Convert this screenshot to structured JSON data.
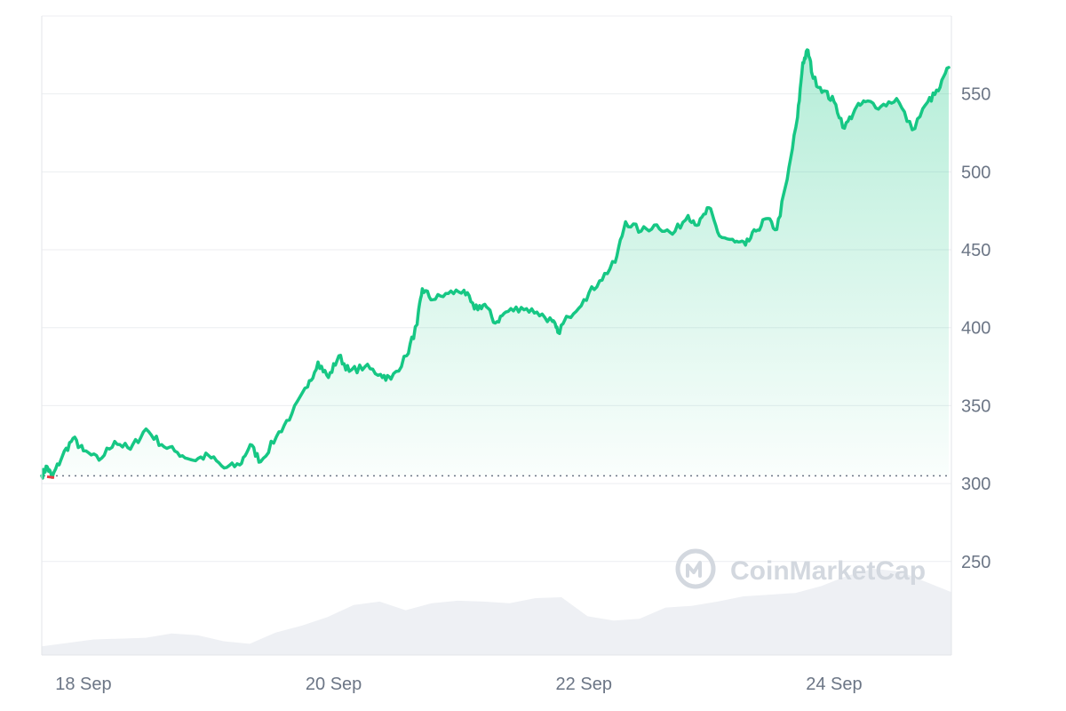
{
  "chart_data": {
    "type": "area",
    "title": "",
    "xlabel": "",
    "ylabel": "",
    "x_ticks": [
      "18 Sep",
      "20 Sep",
      "22 Sep",
      "24 Sep"
    ],
    "y_ticks": [
      250,
      300,
      350,
      400,
      450,
      500,
      550
    ],
    "ylim": [
      190,
      600
    ],
    "xlim": [
      "2024-09-17T16:00",
      "2024-09-24T22:00"
    ],
    "baseline": 305,
    "grid": true,
    "legend": "none",
    "series": [
      {
        "line_color": "#16c784",
        "below_baseline_color": "#ea3943",
        "points": [
          [
            "2024-09-17T16:00",
            305
          ],
          [
            "2024-09-17T17:00",
            311
          ],
          [
            "2024-09-17T18:00",
            304
          ],
          [
            "2024-09-17T20:00",
            318
          ],
          [
            "2024-09-17T22:00",
            329
          ],
          [
            "2024-09-18T00:00",
            321
          ],
          [
            "2024-09-18T03:00",
            315
          ],
          [
            "2024-09-18T06:00",
            327
          ],
          [
            "2024-09-18T09:00",
            322
          ],
          [
            "2024-09-18T12:00",
            335
          ],
          [
            "2024-09-18T15:00",
            325
          ],
          [
            "2024-09-18T18:00",
            320
          ],
          [
            "2024-09-18T21:00",
            315
          ],
          [
            "2024-09-19T00:00",
            318
          ],
          [
            "2024-09-19T03:00",
            310
          ],
          [
            "2024-09-19T06:00",
            312
          ],
          [
            "2024-09-19T08:00",
            325
          ],
          [
            "2024-09-19T10:00",
            314
          ],
          [
            "2024-09-19T13:00",
            330
          ],
          [
            "2024-09-19T16:00",
            345
          ],
          [
            "2024-09-19T19:00",
            362
          ],
          [
            "2024-09-19T21:00",
            378
          ],
          [
            "2024-09-19T23:00",
            368
          ],
          [
            "2024-09-20T01:00",
            382
          ],
          [
            "2024-09-20T03:00",
            372
          ],
          [
            "2024-09-20T06:00",
            375
          ],
          [
            "2024-09-20T09:00",
            370
          ],
          [
            "2024-09-20T11:00",
            367
          ],
          [
            "2024-09-20T14:00",
            382
          ],
          [
            "2024-09-20T16:00",
            402
          ],
          [
            "2024-09-20T17:00",
            425
          ],
          [
            "2024-09-20T19:00",
            418
          ],
          [
            "2024-09-20T22:00",
            422
          ],
          [
            "2024-09-21T01:00",
            424
          ],
          [
            "2024-09-21T03:00",
            412
          ],
          [
            "2024-09-21T05:00",
            415
          ],
          [
            "2024-09-21T07:00",
            403
          ],
          [
            "2024-09-21T09:00",
            410
          ],
          [
            "2024-09-21T12:00",
            413
          ],
          [
            "2024-09-21T15:00",
            410
          ],
          [
            "2024-09-21T18:00",
            404
          ],
          [
            "2024-09-21T19:00",
            397
          ],
          [
            "2024-09-21T21:00",
            407
          ],
          [
            "2024-09-22T00:00",
            418
          ],
          [
            "2024-09-22T03:00",
            430
          ],
          [
            "2024-09-22T06:00",
            442
          ],
          [
            "2024-09-22T08:00",
            468
          ],
          [
            "2024-09-22T11:00",
            462
          ],
          [
            "2024-09-22T14:00",
            466
          ],
          [
            "2024-09-22T17:00",
            460
          ],
          [
            "2024-09-22T20:00",
            472
          ],
          [
            "2024-09-22T22:00",
            466
          ],
          [
            "2024-09-23T00:00",
            477
          ],
          [
            "2024-09-23T02:00",
            459
          ],
          [
            "2024-09-23T05:00",
            455
          ],
          [
            "2024-09-23T07:00",
            453
          ],
          [
            "2024-09-23T09:00",
            462
          ],
          [
            "2024-09-23T11:00",
            470
          ],
          [
            "2024-09-23T13:00",
            463
          ],
          [
            "2024-09-23T15:00",
            495
          ],
          [
            "2024-09-23T17:00",
            535
          ],
          [
            "2024-09-23T18:00",
            570
          ],
          [
            "2024-09-23T19:00",
            578
          ],
          [
            "2024-09-23T20:00",
            560
          ],
          [
            "2024-09-23T22:00",
            552
          ],
          [
            "2024-09-24T00:00",
            545
          ],
          [
            "2024-09-24T02:00",
            528
          ],
          [
            "2024-09-24T04:00",
            540
          ],
          [
            "2024-09-24T06:00",
            545
          ],
          [
            "2024-09-24T09:00",
            542
          ],
          [
            "2024-09-24T12:00",
            547
          ],
          [
            "2024-09-24T15:00",
            527
          ],
          [
            "2024-09-24T18:00",
            545
          ],
          [
            "2024-09-24T20:00",
            552
          ],
          [
            "2024-09-24T22:00",
            567
          ]
        ]
      },
      {
        "type": "volume-area",
        "color": "#eef0f4",
        "relative_levels": [
          0.1,
          0.14,
          0.18,
          0.19,
          0.2,
          0.25,
          0.23,
          0.16,
          0.13,
          0.26,
          0.34,
          0.44,
          0.58,
          0.62,
          0.52,
          0.6,
          0.63,
          0.62,
          0.6,
          0.66,
          0.67,
          0.45,
          0.4,
          0.42,
          0.55,
          0.57,
          0.62,
          0.68,
          0.7,
          0.72,
          0.8,
          0.92,
          1.0,
          0.97,
          0.85,
          0.73
        ]
      }
    ]
  },
  "watermark": {
    "text": "CoinMarketCap",
    "logo": "coinmarketcap-logo-icon",
    "color": "#d3d8df"
  }
}
